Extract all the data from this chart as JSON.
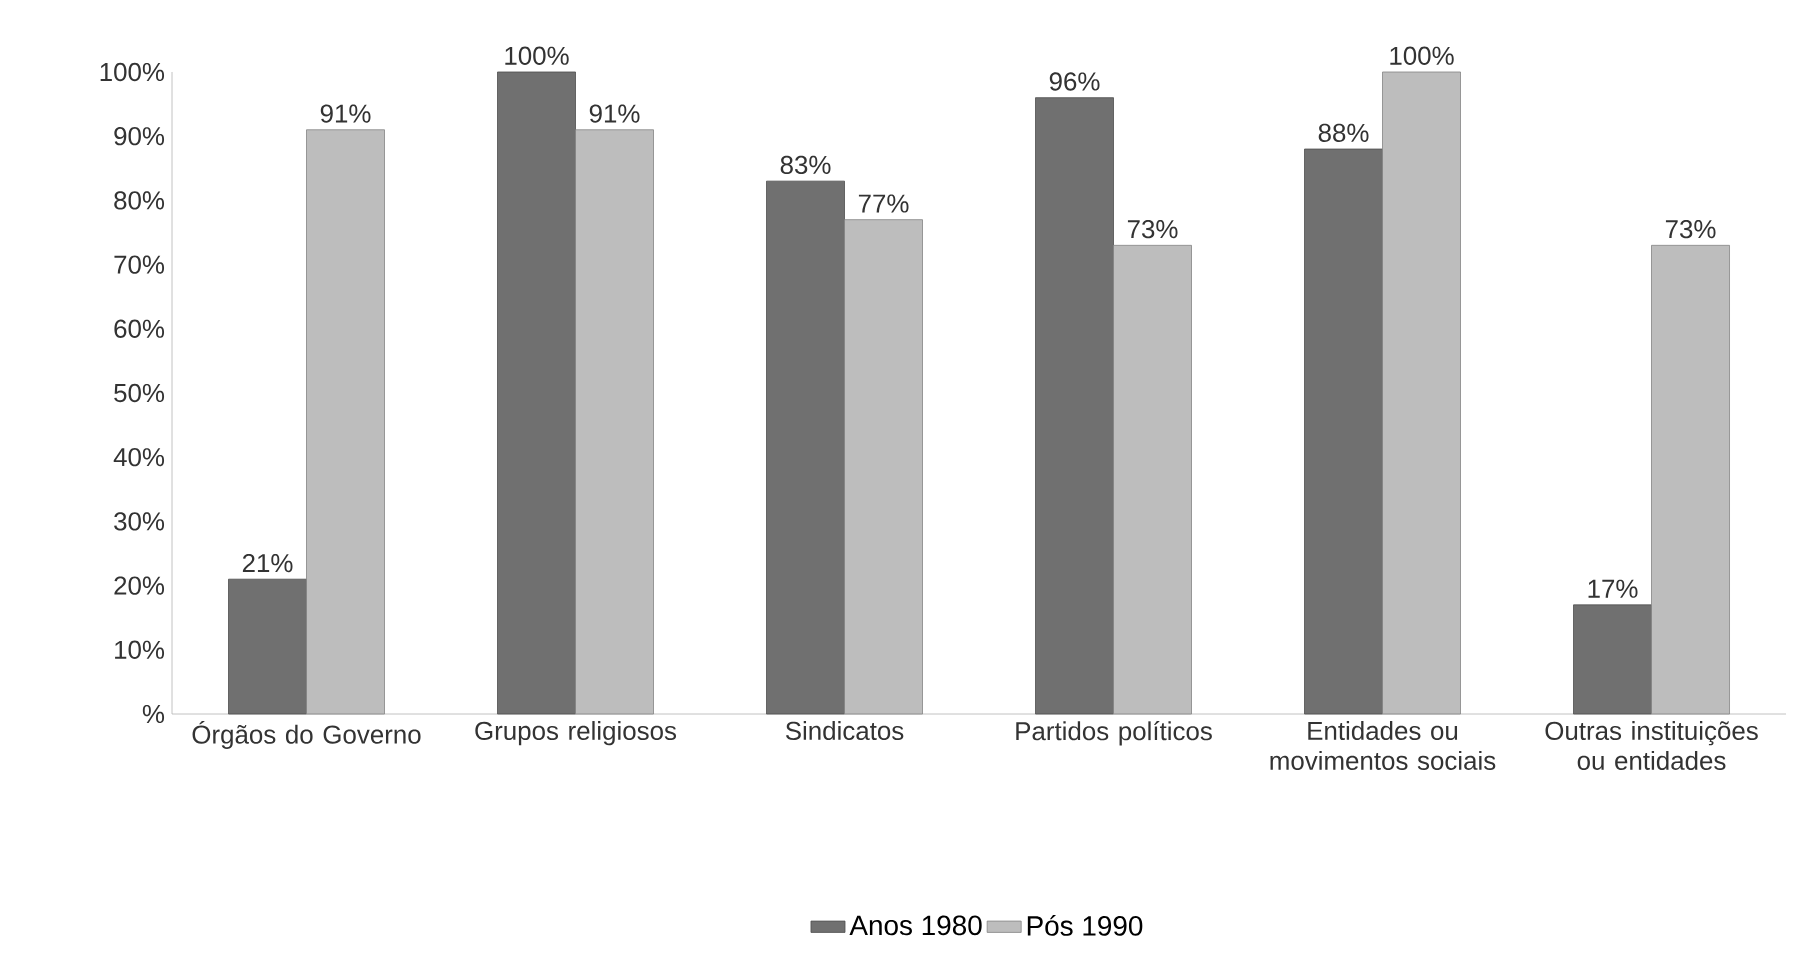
{
  "chart_data": {
    "type": "bar",
    "categories": [
      "Órgãos do Governo",
      "Grupos religiosos",
      "Sindicatos",
      "Partidos políticos",
      "Entidades ou movimentos sociais",
      "Outras instituições ou entidades"
    ],
    "series": [
      {
        "name": "Anos 1980",
        "color": "#707070",
        "values": [
          21,
          100,
          83,
          96,
          88,
          17
        ],
        "value_labels": [
          "21%",
          "100%",
          "83%",
          "96%",
          "88%",
          "17%"
        ]
      },
      {
        "name": "Pós 1990",
        "color": "#bdbdbd",
        "values": [
          91,
          91,
          77,
          73,
          100,
          73
        ],
        "value_labels": [
          "91%",
          "91%",
          "77%",
          "73%",
          "100%",
          "73%"
        ]
      }
    ],
    "ylim": [
      0,
      100
    ],
    "yticks": [
      {
        "value": 0,
        "label": "%"
      },
      {
        "value": 10,
        "label": "10%"
      },
      {
        "value": 20,
        "label": "20%"
      },
      {
        "value": 30,
        "label": "30%"
      },
      {
        "value": 40,
        "label": "40%"
      },
      {
        "value": 50,
        "label": "50%"
      },
      {
        "value": 60,
        "label": "60%"
      },
      {
        "value": 70,
        "label": "70%"
      },
      {
        "value": 80,
        "label": "80%"
      },
      {
        "value": 90,
        "label": "90%"
      },
      {
        "value": 100,
        "label": "100%"
      }
    ],
    "grid": false,
    "legend": "bottom"
  }
}
